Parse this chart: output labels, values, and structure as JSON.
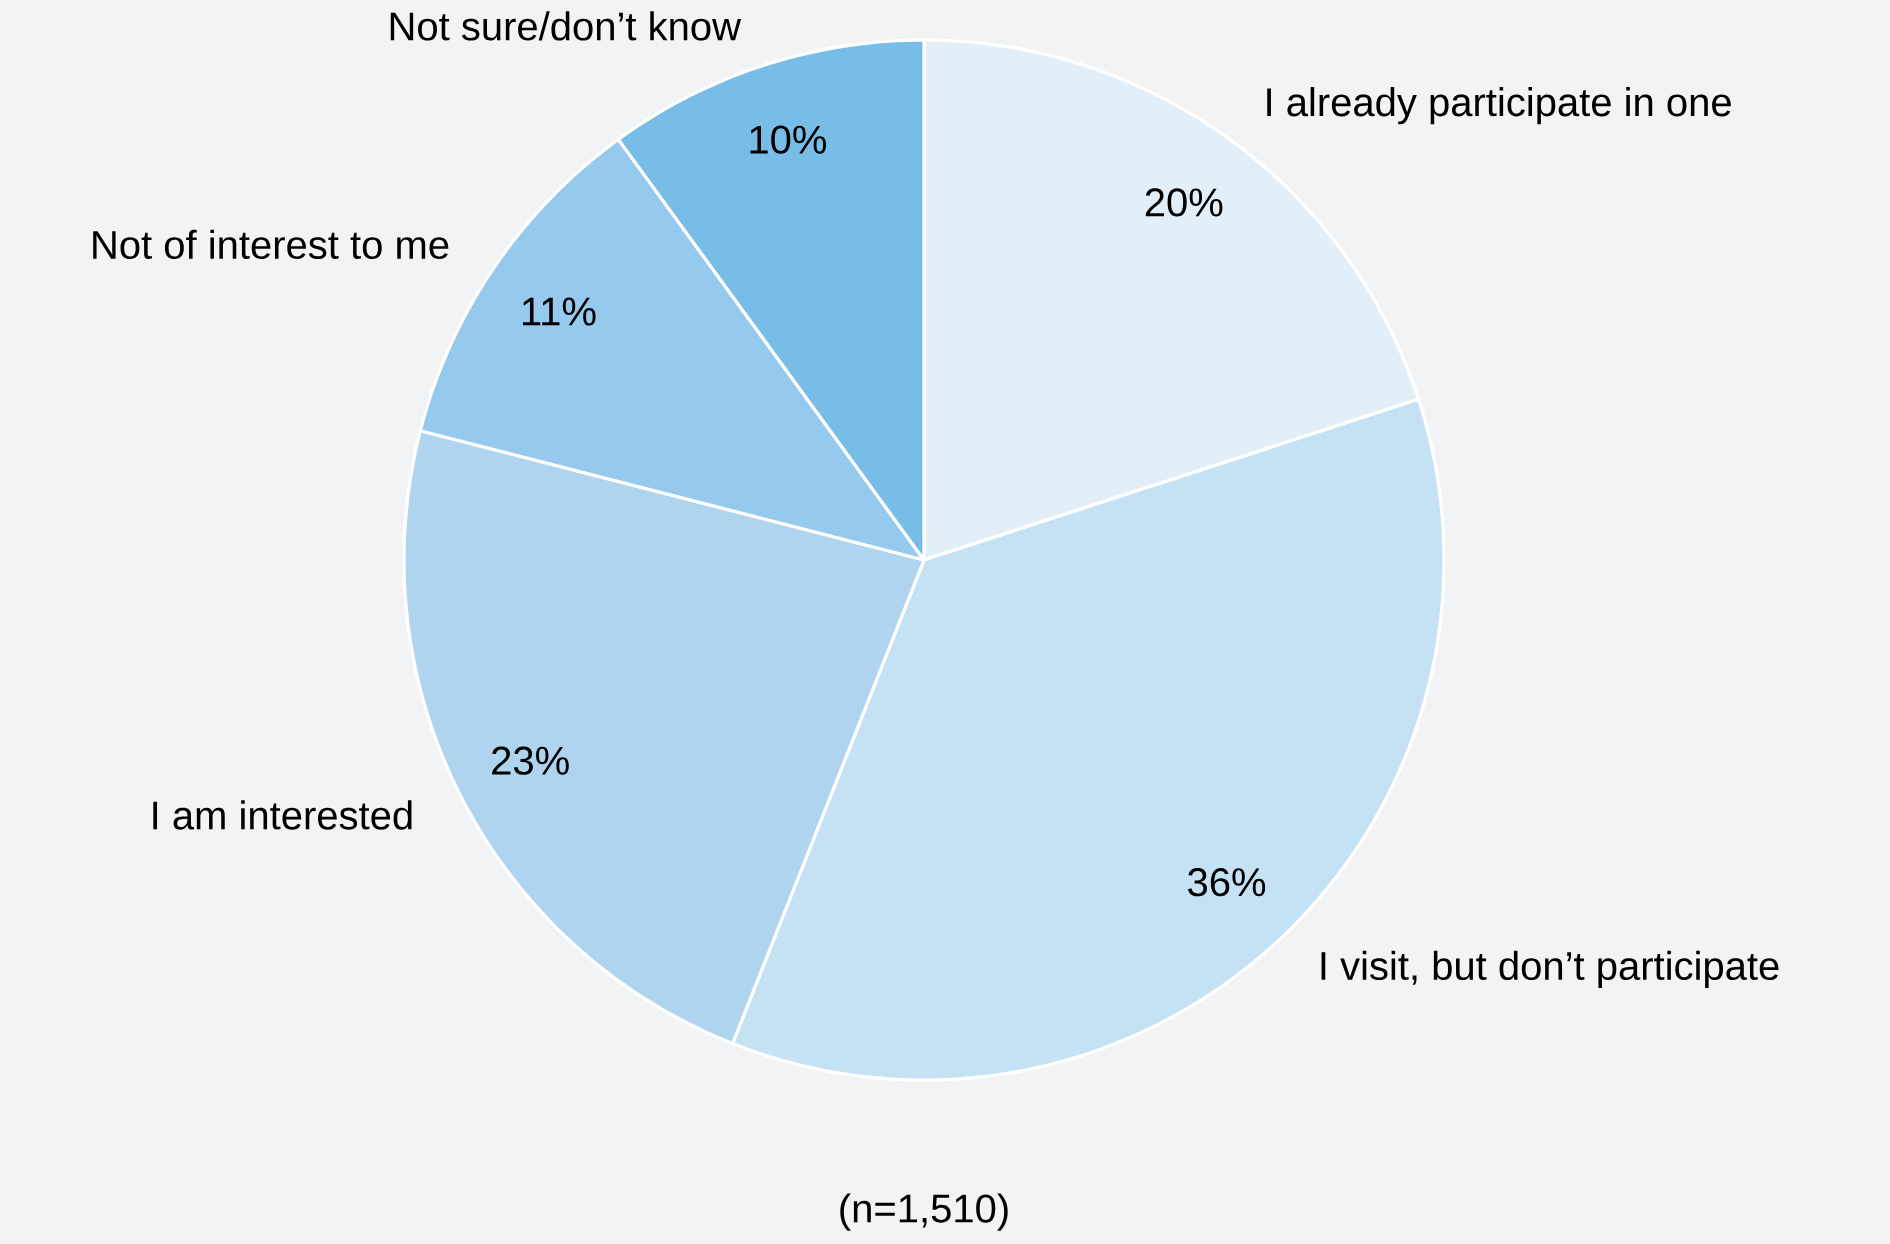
{
  "chart_data": {
    "type": "pie",
    "categories": [
      "I already participate in one",
      "I visit, but don’t participate",
      "I am interested",
      "Not of interest to me",
      "Not sure/don’t know"
    ],
    "values": [
      20,
      36,
      23,
      11,
      10
    ],
    "value_labels": [
      "20%",
      "36%",
      "23%",
      "11%",
      "10%"
    ],
    "colors": [
      "#e2eff9",
      "#c5e1f4",
      "#afd4ef",
      "#95c9ee",
      "#78bce8"
    ],
    "annotations": [
      "(n=1,510)"
    ]
  }
}
